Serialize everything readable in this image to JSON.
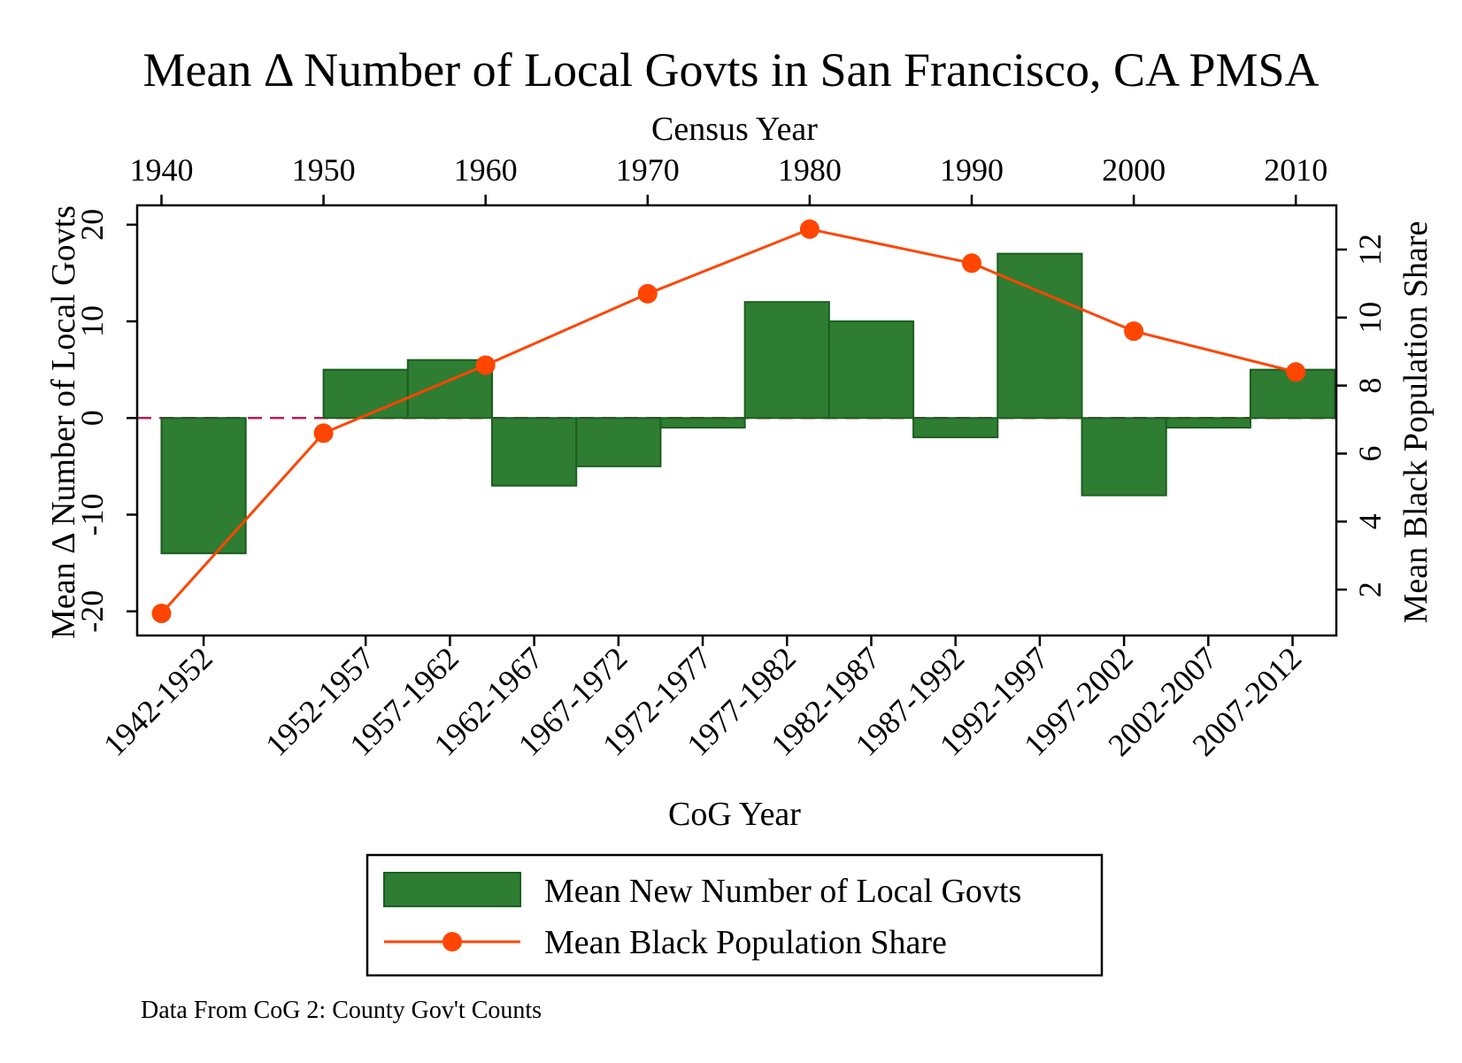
{
  "chart_data": {
    "type": "bar",
    "title": "Mean Δ Number of Local Govts in San Francisco, CA PMSA",
    "note": "Data From CoG 2: County Gov't Counts",
    "xlabel_bottom": "CoG Year",
    "xlabel_top": "Census Year",
    "ylabel_left": "Mean Δ Number of Local Govts",
    "ylabel_right": "Mean Black Population Share",
    "year_range": [
      1938.5,
      2012.5
    ],
    "ylim_left": [
      -22.5,
      22
    ],
    "ylim_right": [
      0.65,
      13.3
    ],
    "left_ticks": [
      -20,
      -10,
      0,
      10,
      20
    ],
    "left_tick_labels": [
      "-20",
      "-10",
      "0",
      "10",
      "20"
    ],
    "right_ticks": [
      2,
      4,
      6,
      8,
      10,
      12
    ],
    "right_tick_labels": [
      "2",
      "4",
      "6",
      "8",
      "10",
      "12"
    ],
    "top_ticks": [
      1940,
      1950,
      1960,
      1970,
      1980,
      1990,
      2000,
      2010
    ],
    "top_tick_labels": [
      "1940",
      "1950",
      "1960",
      "1970",
      "1980",
      "1990",
      "2000",
      "2010"
    ],
    "bar_series": {
      "name": "Mean New Number of Local Govts",
      "color": "#2e7d32",
      "edge_color": "#1b5e20",
      "categories": [
        "1942-1952",
        "1952-1957",
        "1957-1962",
        "1962-1967",
        "1967-1972",
        "1972-1977",
        "1977-1982",
        "1982-1987",
        "1987-1992",
        "1992-1997",
        "1997-2002",
        "2002-2007",
        "2007-2012"
      ],
      "start_year": [
        1940,
        1950,
        1955.2,
        1960.4,
        1965.6,
        1970.8,
        1976,
        1981.2,
        1986.4,
        1991.6,
        1996.8,
        2002,
        2007.2
      ],
      "end_year": [
        1945.2,
        1955.2,
        1960.4,
        1965.6,
        1970.8,
        1976,
        1981.2,
        1986.4,
        1991.6,
        1996.8,
        2002,
        2007.2,
        2012.4
      ],
      "values": [
        -14,
        5,
        6,
        -7,
        -5,
        -1,
        12,
        10,
        -2,
        17,
        -8,
        -1,
        5
      ]
    },
    "line_series": {
      "name": "Mean Black Population Share",
      "color": "#ff4500",
      "x": [
        1940,
        1950,
        1960,
        1970,
        1980,
        1990,
        2000,
        2010
      ],
      "values": [
        1.3,
        6.6,
        8.6,
        10.7,
        12.6,
        11.6,
        9.6,
        8.4
      ]
    },
    "zero_line_color": "#c2185b",
    "legend_position": "bottom"
  }
}
